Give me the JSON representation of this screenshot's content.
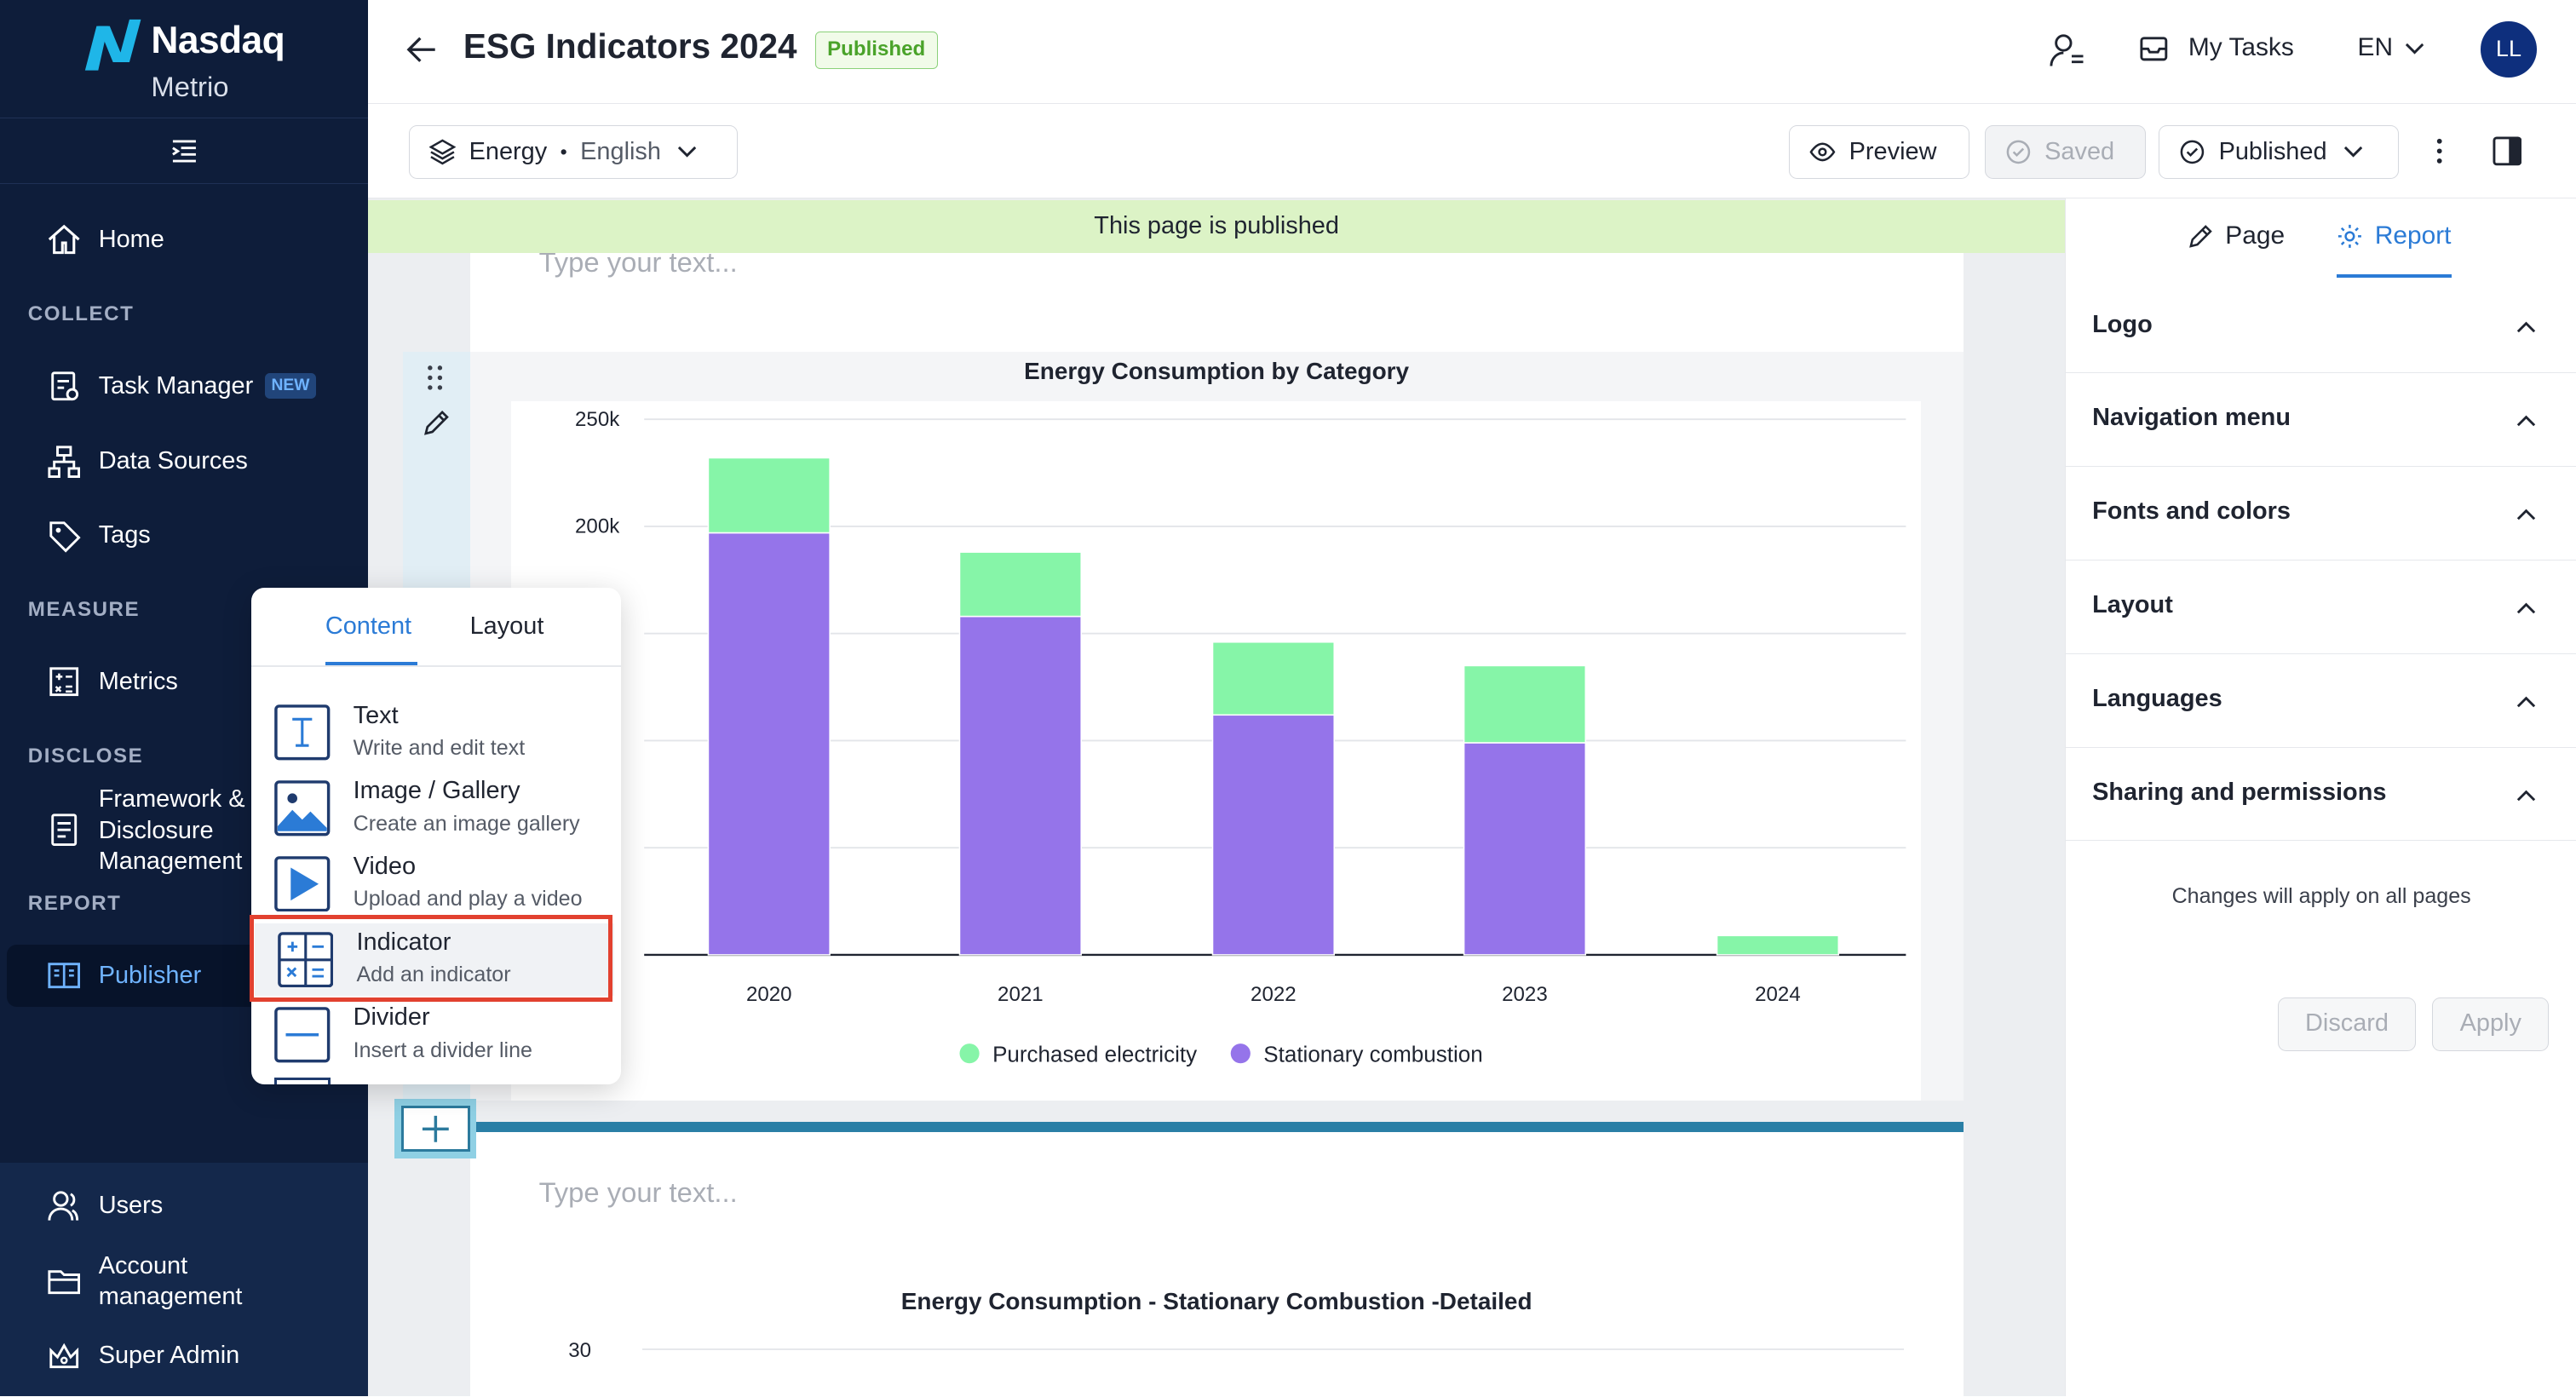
{
  "sidebar": {
    "brand": "Nasdaq",
    "brand_sub": "Metrio",
    "home": "Home",
    "section_collect": "COLLECT",
    "task_manager": "Task Manager",
    "badge_new": "NEW",
    "data_sources": "Data Sources",
    "tags": "Tags",
    "section_measure": "MEASURE",
    "metrics": "Metrics",
    "section_disclose": "DISCLOSE",
    "framework_line1": "Framework &",
    "framework_line2": "Disclosure",
    "framework_line3": "Management",
    "section_report": "REPORT",
    "publisher": "Publisher",
    "users": "Users",
    "account_line1": "Account",
    "account_line2": "management",
    "super_admin": "Super Admin"
  },
  "header": {
    "title": "ESG Indicators 2024",
    "status": "Published",
    "my_tasks": "My Tasks",
    "language": "EN",
    "avatar_initials": "LL"
  },
  "toolbar": {
    "category": "Energy",
    "language": "English",
    "preview": "Preview",
    "saved": "Saved",
    "publish_state": "Published"
  },
  "editor": {
    "banner": "This page is published",
    "placeholder_top": "Type your text...",
    "placeholder_bottom": "Type your text...",
    "chart2_title": "Energy Consumption - Stationary Combustion -Detailed",
    "chart2_first_tick": "30"
  },
  "popup": {
    "tab_content": "Content",
    "tab_layout": "Layout",
    "items": [
      {
        "title": "Text",
        "subtitle": "Write and edit text",
        "icon": "text-icon"
      },
      {
        "title": "Image / Gallery",
        "subtitle": "Create an image gallery",
        "icon": "image-icon"
      },
      {
        "title": "Video",
        "subtitle": "Upload and play a video",
        "icon": "video-icon"
      },
      {
        "title": "Indicator",
        "subtitle": "Add an indicator",
        "icon": "indicator-icon"
      },
      {
        "title": "Divider",
        "subtitle": "Insert a divider line",
        "icon": "divider-icon"
      }
    ]
  },
  "right_panel": {
    "tab_page": "Page",
    "tab_report": "Report",
    "sections": [
      "Logo",
      "Navigation menu",
      "Fonts and colors",
      "Layout",
      "Languages",
      "Sharing and permissions"
    ],
    "note": "Changes will apply on all pages",
    "discard": "Discard",
    "apply": "Apply"
  },
  "colors": {
    "sidebar_bg": "#0e1d3a",
    "accent": "#2b7bd6",
    "purchased_electricity": "#86f5a8",
    "stationary_combustion": "#9574ea",
    "highlight": "#e2412f"
  },
  "chart_data": {
    "type": "bar",
    "stacked": true,
    "title": "Energy Consumption by Category",
    "categories": [
      "2020",
      "2021",
      "2022",
      "2023",
      "2024"
    ],
    "y_ticks": [
      "250k",
      "200k"
    ],
    "ylim": [
      0,
      250000
    ],
    "series": [
      {
        "name": "Stationary combustion",
        "values": [
          197000,
          158000,
          112000,
          99000,
          0
        ]
      },
      {
        "name": "Purchased electricity",
        "values": [
          35000,
          30000,
          34000,
          36000,
          9000
        ]
      }
    ],
    "legend_position": "bottom",
    "grid": true
  }
}
